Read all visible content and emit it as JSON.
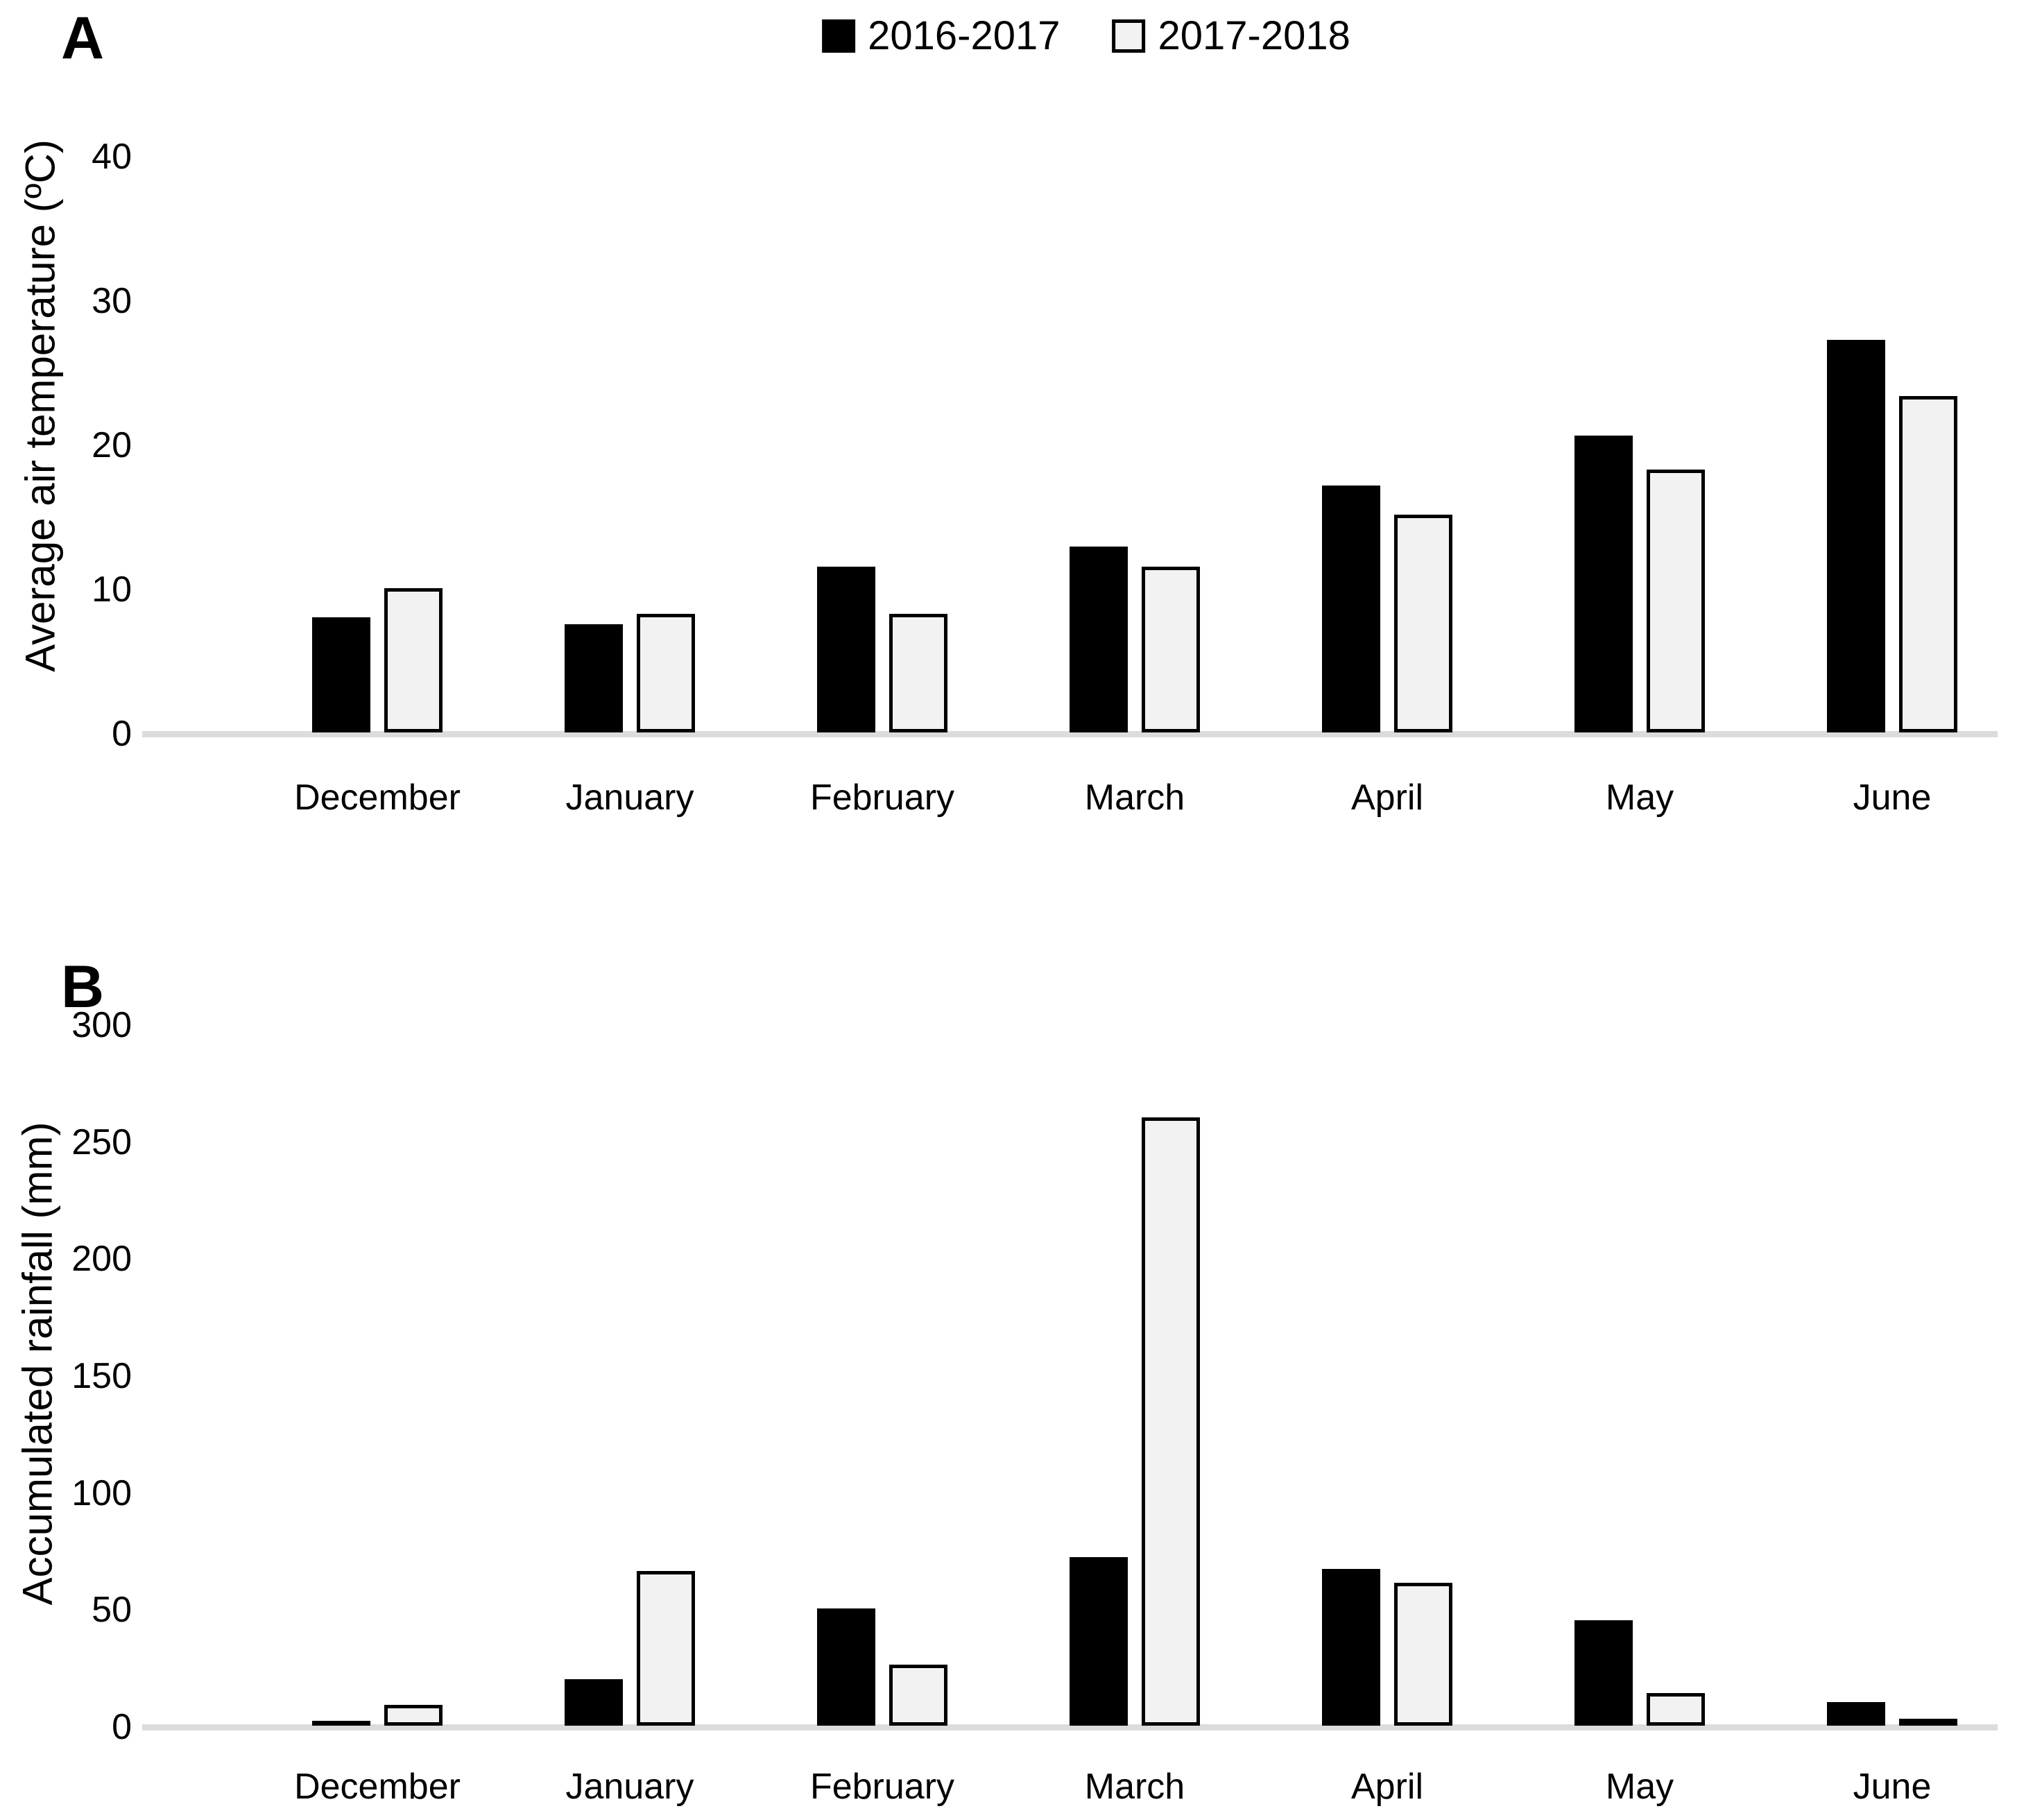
{
  "panels": {
    "a_label": "A",
    "b_label": "B"
  },
  "legend": {
    "items": [
      {
        "label": "2016-2017",
        "swatch": "filled"
      },
      {
        "label": "2017-2018",
        "swatch": "open"
      }
    ]
  },
  "colors": {
    "series_2016_2017": "#000000",
    "series_2017_2018_fill": "#f2f2f2",
    "bar_border": "#000000",
    "axis_line": "#dcdcdc",
    "text": "#000000",
    "background": "#ffffff"
  },
  "chart_data": [
    {
      "type": "bar",
      "panel": "A",
      "title": "",
      "xlabel": "",
      "ylabel": "Average air temperature (ºC)",
      "categories": [
        "December",
        "January",
        "February",
        "March",
        "April",
        "May",
        "June"
      ],
      "series": [
        {
          "name": "2016-2017",
          "values": [
            8.0,
            7.5,
            11.5,
            12.9,
            17.1,
            20.6,
            27.2
          ]
        },
        {
          "name": "2017-2018",
          "values": [
            10.0,
            8.2,
            8.2,
            11.5,
            15.1,
            18.2,
            23.3
          ]
        }
      ],
      "yticks": [
        0,
        10,
        20,
        30,
        40
      ],
      "ylim": [
        0,
        44
      ],
      "grid": false,
      "legend_position": "top-center"
    },
    {
      "type": "bar",
      "panel": "B",
      "title": "",
      "xlabel": "",
      "ylabel": "Accumulated rainfall (mm)",
      "categories": [
        "December",
        "January",
        "February",
        "March",
        "April",
        "May",
        "June"
      ],
      "series": [
        {
          "name": "2016-2017",
          "values": [
            2,
            20,
            50,
            72,
            67,
            45,
            10
          ]
        },
        {
          "name": "2017-2018",
          "values": [
            9,
            66,
            26,
            260,
            61,
            14,
            3
          ]
        }
      ],
      "yticks": [
        0,
        50,
        100,
        150,
        200,
        250,
        300
      ],
      "ylim": [
        0,
        310
      ],
      "grid": false,
      "legend_position": "none"
    }
  ]
}
